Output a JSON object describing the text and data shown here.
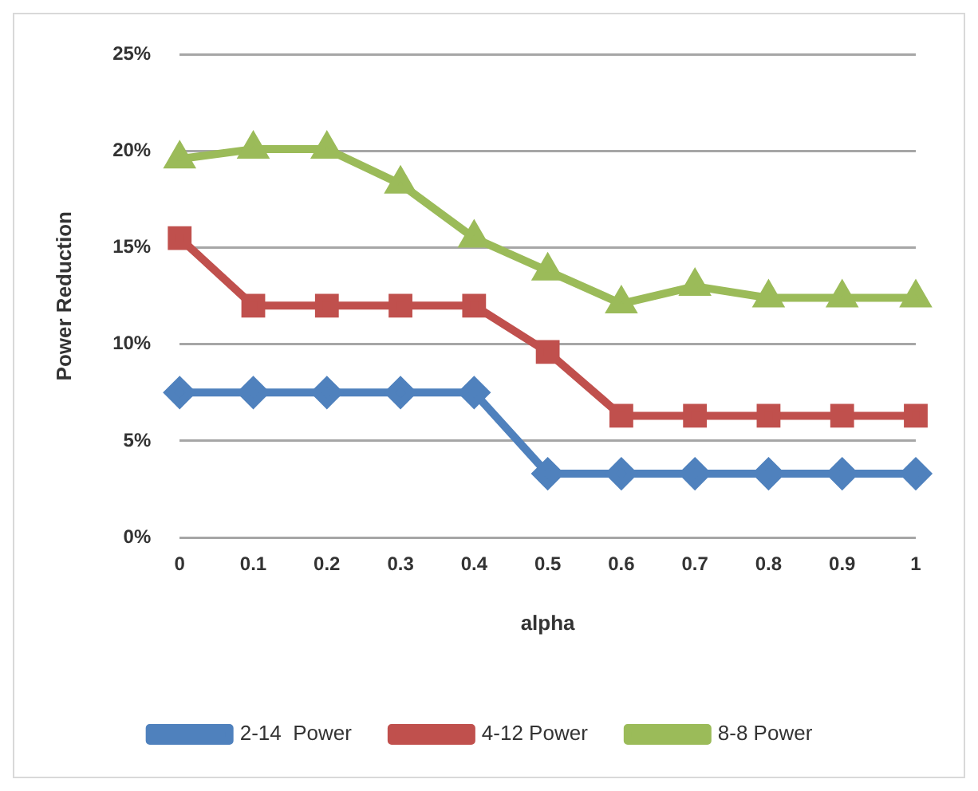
{
  "chart_data": {
    "type": "line",
    "xlabel": "alpha",
    "ylabel": "Power Reduction",
    "categories": [
      "0",
      "0.1",
      "0.2",
      "0.3",
      "0.4",
      "0.5",
      "0.6",
      "0.7",
      "0.8",
      "0.9",
      "1"
    ],
    "series": [
      {
        "name": "2-14  Power",
        "color": "#4f81bd",
        "marker": "diamond",
        "values": [
          7.5,
          7.5,
          7.5,
          7.5,
          7.5,
          3.3,
          3.3,
          3.3,
          3.3,
          3.3,
          3.3
        ]
      },
      {
        "name": "4-12 Power",
        "color": "#c0504d",
        "marker": "square",
        "values": [
          15.5,
          12,
          12,
          12,
          12,
          9.6,
          6.3,
          6.3,
          6.3,
          6.3,
          6.3
        ]
      },
      {
        "name": "8-8 Power",
        "color": "#9bbb59",
        "marker": "triangle",
        "values": [
          19.6,
          20.1,
          20.1,
          18.3,
          15.5,
          13.8,
          12.1,
          13,
          12.4,
          12.4,
          12.4
        ]
      }
    ],
    "ylim": [
      0,
      25
    ],
    "yticks": [
      {
        "value": 0,
        "label": "0%"
      },
      {
        "value": 5,
        "label": "5%"
      },
      {
        "value": 10,
        "label": "10%"
      },
      {
        "value": 15,
        "label": "15%"
      },
      {
        "value": 20,
        "label": "20%"
      },
      {
        "value": 25,
        "label": "25%"
      }
    ],
    "grid": "y",
    "legend": "bottom",
    "line_style": "solid"
  }
}
